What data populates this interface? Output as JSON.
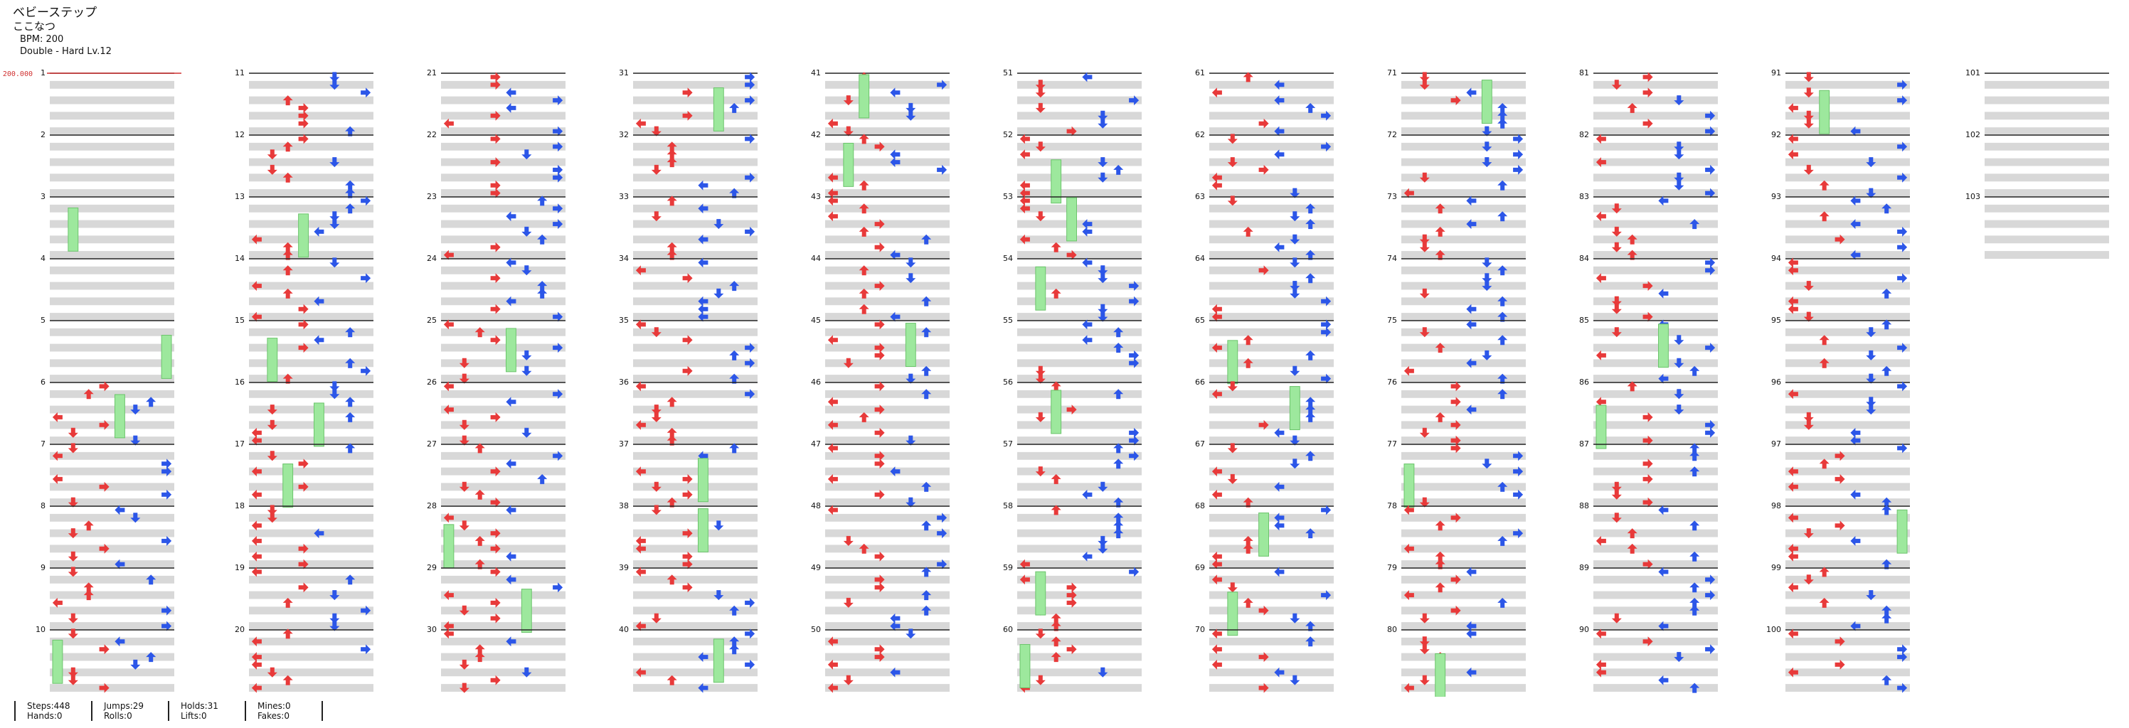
{
  "song": {
    "title": "ベビーステップ",
    "artist": "ここなつ",
    "bpm_text": "BPM: 200",
    "difficulty_text": "Double - Hard Lv.12"
  },
  "bpm_marker": "200.000",
  "colors": {
    "left_arrow": "#e83a3a",
    "right_arrow": "#2c56e8",
    "hold": "#9de89d",
    "mine": "#e8d84a",
    "lift": "#a84ae8",
    "beat_line": "#222222",
    "band": "#d8d8d8"
  },
  "chart": {
    "measure_count": 103,
    "columns": 11,
    "measures_per_column": 10,
    "labels": [
      "1",
      "2",
      "3",
      "4",
      "5",
      "6",
      "7",
      "8",
      "9",
      "10",
      "11",
      "12",
      "13",
      "14",
      "15",
      "16",
      "17",
      "18",
      "19",
      "20",
      "21",
      "22",
      "23",
      "24",
      "25",
      "26",
      "27",
      "28",
      "29",
      "30",
      "31",
      "32",
      "33",
      "34",
      "35",
      "36",
      "37",
      "38",
      "39",
      "40",
      "41",
      "42",
      "43",
      "44",
      "45",
      "46",
      "47",
      "48",
      "49",
      "50",
      "51",
      "52",
      "53",
      "54",
      "55",
      "56",
      "57",
      "58",
      "59",
      "60",
      "61",
      "62",
      "63",
      "64",
      "65",
      "66",
      "67",
      "68",
      "69",
      "70",
      "71",
      "72",
      "73",
      "74",
      "75",
      "76",
      "77",
      "78",
      "79",
      "80",
      "81",
      "82",
      "83",
      "84",
      "85",
      "86",
      "87",
      "88",
      "89",
      "90",
      "91",
      "92",
      "93",
      "94",
      "95",
      "96",
      "97",
      "98",
      "99",
      "100",
      "101",
      "102",
      "103"
    ]
  },
  "stats": {
    "steps": "Steps:448",
    "hands": "Hands:0",
    "jumps": "Jumps:29",
    "rolls": "Rolls:0",
    "holds": "Holds:31",
    "lifts": "Lifts:0",
    "mines": "Mines:0",
    "fakes": "Fakes:0"
  }
}
